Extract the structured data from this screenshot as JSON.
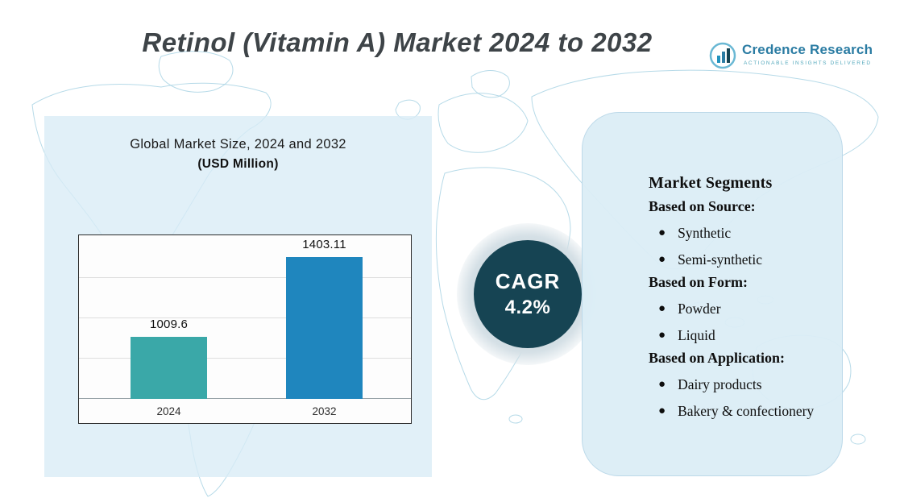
{
  "header": {
    "title": "Retinol (Vitamin A) Market 2024 to 2032",
    "logo": {
      "name": "Credence Research",
      "tagline": "Actionable Insights Delivered"
    }
  },
  "chart_data": {
    "type": "bar",
    "title": "Global Market Size, 2024 and 2032",
    "subtitle": "(USD Million)",
    "categories": [
      "2024",
      "2032"
    ],
    "values": [
      1009.6,
      1403.11
    ],
    "value_labels": [
      "1009.6",
      "1403.11"
    ],
    "series_name": "Global Market Size (USD Million)",
    "ylim": [
      700,
      1500
    ],
    "grid": true,
    "legend": "none",
    "bar_colors": [
      "#3aa8a8",
      "#1f86be"
    ]
  },
  "cagr": {
    "label": "CAGR",
    "value": "4.2%",
    "circle_color": "#164453"
  },
  "segments": {
    "title": "Market Segments",
    "groups": [
      {
        "heading": "Based on Source:",
        "items": [
          "Synthetic",
          "Semi-synthetic"
        ]
      },
      {
        "heading": "Based on Form:",
        "items": [
          "Powder",
          "Liquid"
        ]
      },
      {
        "heading": "Based on Application:",
        "items": [
          "Dairy products",
          "Bakery & confectionery"
        ]
      }
    ]
  },
  "colors": {
    "panel_bg": "#d9ecf6",
    "map_line": "#a9d4e4",
    "title_text": "#3e4448",
    "brand_blue": "#2b7ca3",
    "bar_2024": "#3aa8a8",
    "bar_2032": "#1f86be",
    "cagr_circle": "#164453"
  }
}
